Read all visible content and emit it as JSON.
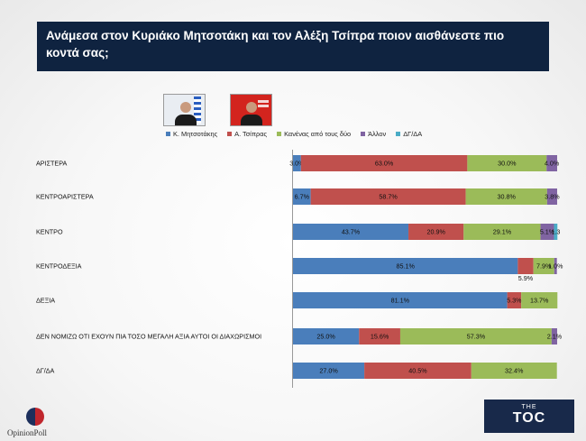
{
  "title": "Ανάμεσα στον Κυριάκο Μητσοτάκη και τον Αλέξη Τσίπρα ποιον αισθάνεστε πιο κοντά σας;",
  "logos": {
    "left": "OpinionPoll",
    "right_small": "THE",
    "right_big": "TOC"
  },
  "chart_data": {
    "type": "bar",
    "orientation": "horizontal",
    "stacked": true,
    "title": "Ανάμεσα στον Κυριάκο Μητσοτάκη και τον Αλέξη Τσίπρα ποιον αισθάνεστε πιο κοντά σας;",
    "xlim": [
      0,
      100
    ],
    "legend_position": "top",
    "categories": [
      "ΑΡΙΣΤΕΡΑ",
      "ΚΕΝΤΡΟΑΡΙΣΤΕΡΑ",
      "ΚΕΝΤΡΟ",
      "ΚΕΝΤΡΟΔΕΞΙΑ",
      "ΔΕΞΙΑ",
      "ΔΕΝ ΝΟΜΙΖΩ ΟΤΙ ΕΧΟΥΝ ΠΙΑ ΤΟΣΟ ΜΕΓΑΛΗ ΑΞΙΑ ΑΥΤΟΙ ΟΙ ΔΙΑΧΩΡΙΣΜΟΙ",
      "ΔΓ/ΔΑ"
    ],
    "series": [
      {
        "name": "Κ. Μητσοτάκης",
        "color": "#4a7ebb",
        "values": [
          3.0,
          6.7,
          43.7,
          85.1,
          81.1,
          25.0,
          27.0
        ],
        "labels": [
          "3.0%",
          "6.7%",
          "43.7%",
          "85.1%",
          "81.1%",
          "25.0%",
          "27.0%"
        ]
      },
      {
        "name": "Α. Τσίπρας",
        "color": "#c0504d",
        "values": [
          63.0,
          58.7,
          20.9,
          5.9,
          5.3,
          15.6,
          40.5
        ],
        "labels": [
          "63.0%",
          "58.7%",
          "20.9%",
          "5.9%",
          "5.3%",
          "15.6%",
          "40.5%"
        ]
      },
      {
        "name": "Κανένας από τους δύο",
        "color": "#9bbb59",
        "values": [
          30.0,
          30.8,
          29.1,
          7.9,
          13.7,
          57.3,
          32.4
        ],
        "labels": [
          "30.0%",
          "30.8%",
          "29.1%",
          "7.9%",
          "13.7%",
          "57.3%",
          "32.4%"
        ]
      },
      {
        "name": "Άλλον",
        "color": "#8064a2",
        "values": [
          4.0,
          3.8,
          5.1,
          1.0,
          0,
          2.1,
          0
        ],
        "labels": [
          "4.0%",
          "3.8%",
          "5.1%",
          "1.0%",
          "",
          "2.1%",
          ""
        ]
      },
      {
        "name": "ΔΓ/ΔΑ",
        "color": "#4bacc6",
        "values": [
          0,
          0,
          1.3,
          0,
          0,
          0,
          0
        ],
        "labels": [
          "",
          "",
          "1.3",
          "",
          "",
          "",
          ""
        ]
      }
    ]
  }
}
